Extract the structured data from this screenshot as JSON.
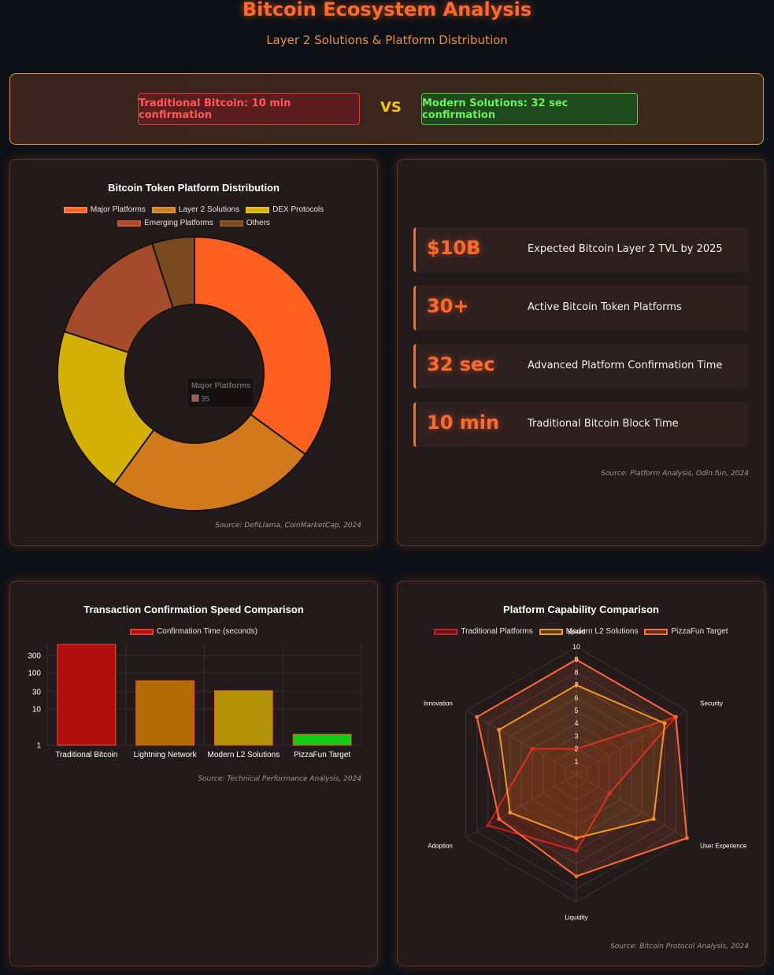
{
  "header": {
    "title": "Bitcoin Ecosystem Analysis",
    "subtitle": "Layer 2 Solutions & Platform Distribution"
  },
  "comparison": {
    "left": "Traditional Bitcoin: 10 min confirmation",
    "vs": "VS",
    "right": "Modern Solutions: 32 sec confirmation"
  },
  "stats": {
    "items": [
      {
        "value": "$10B",
        "label": "Expected Bitcoin Layer 2 TVL by 2025"
      },
      {
        "value": "30+",
        "label": "Active Bitcoin Token Platforms"
      },
      {
        "value": "32 sec",
        "label": "Advanced Platform Confirmation Time"
      },
      {
        "value": "10 min",
        "label": "Traditional Bitcoin Block Time"
      }
    ],
    "source": "Source: Platform Analysis, Odin.fun, 2024"
  },
  "colors": {
    "accent": "#ff6a2b",
    "major": "#ff5f1f",
    "layer2": "#d07a1c",
    "dex": "#d4b106",
    "emerging": "#a64a2c",
    "others": "#7a4a1e"
  },
  "chart_data": [
    {
      "type": "pie",
      "title": "Bitcoin Token Platform Distribution",
      "categories": [
        "Major Platforms",
        "Layer 2 Solutions",
        "DEX Protocols",
        "Emerging Platforms",
        "Others"
      ],
      "values": [
        35,
        25,
        20,
        15,
        5
      ],
      "colors": [
        "#ff5f1f",
        "#d07a1c",
        "#d4b106",
        "#a64a2c",
        "#7a4a1e"
      ],
      "legend": "top",
      "tooltip": {
        "label": "Major Platforms",
        "value": "35"
      },
      "source": "Source: DefiLlama, CoinMarketCap, 2024"
    },
    {
      "type": "bar",
      "title": "Transaction Confirmation Speed Comparison",
      "categories": [
        "Traditional Bitcoin",
        "Lightning Network",
        "Modern L2 Solutions",
        "PizzaFun Target"
      ],
      "series": [
        {
          "name": "Confirmation Time (seconds)",
          "values": [
            600,
            60,
            32,
            2
          ]
        }
      ],
      "colors": [
        "#b30e0e",
        "#b36b06",
        "#b39407",
        "#15cc15"
      ],
      "yscale": "log",
      "ylim": [
        1,
        600
      ],
      "yticks": [
        "1",
        "10",
        "30",
        "100",
        "300"
      ],
      "legend": "top",
      "source": "Source: Technical Performance Analysis, 2024"
    },
    {
      "type": "radar",
      "title": "Platform Capability Comparison",
      "axes": [
        "Speed",
        "Security",
        "User Experience",
        "Liquidity",
        "Adoption",
        "Innovation"
      ],
      "rlim": [
        0,
        10
      ],
      "rticks": [
        "1",
        "2",
        "3",
        "4",
        "5",
        "6",
        "7",
        "8",
        "9",
        "10"
      ],
      "series": [
        {
          "name": "Traditional Platforms",
          "values": [
            2,
            9,
            3,
            6,
            8,
            4
          ],
          "color": "#d61a1a"
        },
        {
          "name": "Modern L2 Solutions",
          "values": [
            7,
            8,
            7,
            5,
            6,
            7
          ],
          "color": "#f59a1f"
        },
        {
          "name": "PizzaFun Target",
          "values": [
            9,
            9,
            10,
            8,
            7,
            9
          ],
          "color": "#ff6a3a"
        }
      ],
      "legend": "top",
      "source": "Source: Bitcoin Protocol Analysis, 2024"
    }
  ]
}
